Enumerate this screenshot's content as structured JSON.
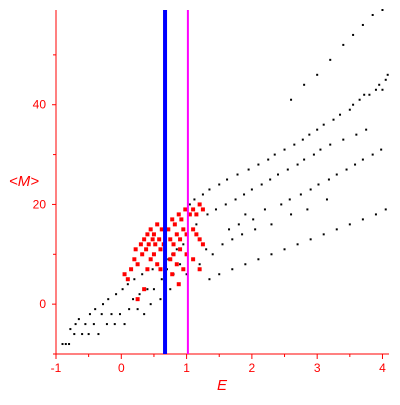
{
  "chart_data": {
    "type": "scatter",
    "title": "",
    "xlabel": "E",
    "ylabel": "<M>",
    "xlim": [
      -1,
      4.1
    ],
    "ylim": [
      -10,
      59
    ],
    "x_ticks": [
      -1,
      0,
      1,
      2,
      3,
      4
    ],
    "y_ticks": [
      0,
      20,
      40
    ],
    "x_tick_labels": [
      "-1",
      "0",
      "1",
      "2",
      "3",
      "4"
    ],
    "y_tick_labels": [
      "0",
      "20",
      "40"
    ],
    "grid": false,
    "legend": "none",
    "colors": {
      "axis": "#ff0000",
      "background_points": "#000000",
      "highlight_points": "#ff0000",
      "vline_blue": "#0000ff",
      "vline_magenta": "#ff00ff"
    },
    "vertical_lines": [
      {
        "x": 0.67,
        "color": "#0000ff",
        "style": "thick"
      },
      {
        "x": 1.02,
        "color": "#ff00ff",
        "style": "thin"
      }
    ],
    "series": [
      {
        "marker": "dot",
        "color": "#000000",
        "points": [
          [
            -0.9,
            -8
          ],
          [
            -0.85,
            -8
          ],
          [
            -0.8,
            -8
          ],
          [
            -0.78,
            -5
          ],
          [
            -0.72,
            -6
          ],
          [
            -0.7,
            -4
          ],
          [
            -0.65,
            -3
          ],
          [
            -0.6,
            -6
          ],
          [
            -0.55,
            -4
          ],
          [
            -0.5,
            -6
          ],
          [
            -0.48,
            -2
          ],
          [
            -0.42,
            -4
          ],
          [
            -0.4,
            -1
          ],
          [
            -0.35,
            -6
          ],
          [
            -0.3,
            -2
          ],
          [
            -0.28,
            0
          ],
          [
            -0.22,
            -4
          ],
          [
            -0.2,
            1
          ],
          [
            -0.15,
            -2
          ],
          [
            -0.1,
            -4
          ],
          [
            -0.08,
            2
          ],
          [
            -0.02,
            -2
          ],
          [
            0.02,
            3
          ],
          [
            0.05,
            -4
          ],
          [
            0.1,
            4
          ],
          [
            0.12,
            -1
          ],
          [
            0.18,
            1
          ],
          [
            0.2,
            5
          ],
          [
            0.25,
            -1
          ],
          [
            0.28,
            2
          ],
          [
            0.32,
            6
          ],
          [
            0.35,
            -2
          ],
          [
            0.4,
            3
          ],
          [
            0.45,
            0
          ],
          [
            0.48,
            7
          ],
          [
            0.5,
            3
          ],
          [
            0.55,
            8
          ],
          [
            0.6,
            1
          ],
          [
            0.62,
            5
          ],
          [
            0.7,
            7
          ],
          [
            0.72,
            9
          ],
          [
            0.75,
            3
          ],
          [
            0.78,
            10
          ],
          [
            0.8,
            6
          ],
          [
            0.85,
            11
          ],
          [
            0.88,
            4
          ],
          [
            0.9,
            8
          ],
          [
            0.95,
            12
          ],
          [
            1.0,
            6
          ],
          [
            1.05,
            20
          ],
          [
            1.1,
            9
          ],
          [
            1.12,
            21
          ],
          [
            1.15,
            16
          ],
          [
            1.2,
            8
          ],
          [
            1.25,
            22
          ],
          [
            1.3,
            11
          ],
          [
            1.32,
            18
          ],
          [
            1.35,
            23
          ],
          [
            1.4,
            10
          ],
          [
            1.45,
            19
          ],
          [
            1.5,
            24
          ],
          [
            1.55,
            12
          ],
          [
            1.6,
            20
          ],
          [
            1.62,
            25
          ],
          [
            1.65,
            15
          ],
          [
            1.7,
            13
          ],
          [
            1.75,
            21
          ],
          [
            1.78,
            26
          ],
          [
            1.8,
            16
          ],
          [
            1.85,
            14
          ],
          [
            1.88,
            22
          ],
          [
            1.9,
            18
          ],
          [
            1.95,
            27
          ],
          [
            2.0,
            23
          ],
          [
            2.02,
            17
          ],
          [
            2.05,
            15
          ],
          [
            2.1,
            28
          ],
          [
            2.15,
            24
          ],
          [
            2.2,
            19
          ],
          [
            2.25,
            29
          ],
          [
            2.28,
            25
          ],
          [
            2.3,
            16
          ],
          [
            2.35,
            30
          ],
          [
            2.4,
            26
          ],
          [
            2.45,
            20
          ],
          [
            2.5,
            31
          ],
          [
            2.55,
            27
          ],
          [
            2.58,
            21
          ],
          [
            2.6,
            18
          ],
          [
            2.65,
            32
          ],
          [
            2.7,
            28
          ],
          [
            2.75,
            22
          ],
          [
            2.78,
            33
          ],
          [
            2.8,
            29
          ],
          [
            2.85,
            19
          ],
          [
            2.88,
            34
          ],
          [
            2.9,
            23
          ],
          [
            2.95,
            30
          ],
          [
            3.0,
            35
          ],
          [
            3.02,
            24
          ],
          [
            3.05,
            31
          ],
          [
            3.1,
            36
          ],
          [
            3.15,
            21
          ],
          [
            3.18,
            25
          ],
          [
            3.2,
            32
          ],
          [
            3.25,
            37
          ],
          [
            3.3,
            26
          ],
          [
            3.35,
            38
          ],
          [
            3.4,
            33
          ],
          [
            3.45,
            27
          ],
          [
            3.5,
            39
          ],
          [
            3.55,
            40
          ],
          [
            3.58,
            28
          ],
          [
            3.6,
            34
          ],
          [
            3.65,
            41
          ],
          [
            3.7,
            29
          ],
          [
            3.72,
            42
          ],
          [
            3.75,
            35
          ],
          [
            3.8,
            42
          ],
          [
            3.85,
            30
          ],
          [
            3.9,
            43
          ],
          [
            3.95,
            44
          ],
          [
            4.0,
            43
          ],
          [
            4.05,
            45
          ],
          [
            4.08,
            46
          ],
          [
            3.98,
            31
          ],
          [
            2.6,
            41
          ],
          [
            2.8,
            44
          ],
          [
            3.0,
            46
          ],
          [
            3.2,
            49
          ],
          [
            3.4,
            52
          ],
          [
            3.55,
            54
          ],
          [
            3.7,
            56
          ],
          [
            3.85,
            58
          ],
          [
            4.0,
            59
          ],
          [
            1.35,
            5
          ],
          [
            1.5,
            6
          ],
          [
            1.7,
            7
          ],
          [
            1.9,
            8
          ],
          [
            2.1,
            9
          ],
          [
            2.3,
            10
          ],
          [
            2.5,
            11
          ],
          [
            2.7,
            12
          ],
          [
            2.9,
            13
          ],
          [
            3.1,
            14
          ],
          [
            3.3,
            15
          ],
          [
            3.5,
            16
          ],
          [
            3.7,
            17
          ],
          [
            3.9,
            18
          ],
          [
            4.05,
            19
          ]
        ]
      },
      {
        "marker": "square",
        "color": "#ff0000",
        "points": [
          [
            0.05,
            6
          ],
          [
            0.1,
            5
          ],
          [
            0.15,
            7
          ],
          [
            0.2,
            9
          ],
          [
            0.22,
            11
          ],
          [
            0.25,
            8
          ],
          [
            0.3,
            12
          ],
          [
            0.32,
            10
          ],
          [
            0.35,
            13
          ],
          [
            0.38,
            11
          ],
          [
            0.4,
            14
          ],
          [
            0.42,
            12
          ],
          [
            0.45,
            15
          ],
          [
            0.48,
            13
          ],
          [
            0.5,
            14
          ],
          [
            0.52,
            12
          ],
          [
            0.55,
            16
          ],
          [
            0.58,
            13
          ],
          [
            0.6,
            11
          ],
          [
            0.62,
            15
          ],
          [
            0.65,
            12
          ],
          [
            0.35,
            3
          ],
          [
            0.55,
            8
          ],
          [
            0.6,
            7
          ],
          [
            0.45,
            9
          ],
          [
            0.25,
            1
          ],
          [
            0.5,
            10
          ],
          [
            0.4,
            7
          ],
          [
            0.72,
            15
          ],
          [
            0.75,
            13
          ],
          [
            0.78,
            17
          ],
          [
            0.8,
            12
          ],
          [
            0.82,
            16
          ],
          [
            0.85,
            14
          ],
          [
            0.88,
            18
          ],
          [
            0.9,
            13
          ],
          [
            0.92,
            17
          ],
          [
            0.95,
            15
          ],
          [
            0.98,
            19
          ],
          [
            1.0,
            14
          ],
          [
            0.75,
            9
          ],
          [
            0.8,
            10
          ],
          [
            0.85,
            8
          ],
          [
            0.9,
            11
          ],
          [
            0.95,
            7
          ],
          [
            1.0,
            10
          ],
          [
            0.78,
            6
          ],
          [
            0.88,
            4
          ],
          [
            1.05,
            18
          ],
          [
            1.1,
            19
          ],
          [
            1.15,
            18
          ],
          [
            1.2,
            20
          ],
          [
            1.25,
            19
          ],
          [
            1.1,
            15
          ],
          [
            1.15,
            14
          ],
          [
            1.2,
            13
          ],
          [
            1.25,
            12
          ],
          [
            1.1,
            9
          ],
          [
            1.2,
            7
          ]
        ]
      }
    ]
  }
}
